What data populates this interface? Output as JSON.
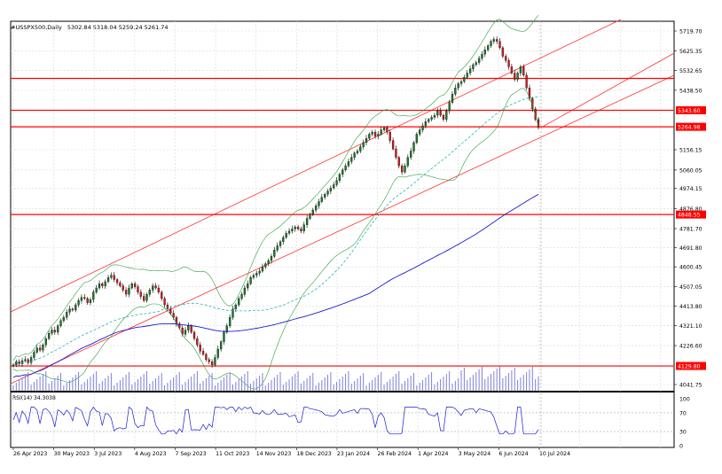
{
  "header": {
    "symbol": "#USSPX500,Daily",
    "ohlc": "5302.84 5318.04 5259.24 5261.74"
  },
  "rsi": {
    "label": "RSI(14) 34.3038",
    "levels": [
      "100",
      "70",
      "30",
      "0"
    ]
  },
  "chart_data": {
    "type": "candlestick",
    "price_axis_ticks": [
      "5719.70",
      "5625.35",
      "5532.65",
      "5438.50",
      "5343.60",
      "5264.98",
      "5156.15",
      "5060.05",
      "4974.15",
      "4876.80",
      "4848.55",
      "4781.70",
      "4691.80",
      "4600.45",
      "4507.05",
      "4413.80",
      "4321.10",
      "4226.60",
      "4129.80",
      "4041.75"
    ],
    "price_tick_values": [
      5719.7,
      5625.35,
      5532.65,
      5438.5,
      5343.6,
      5264.98,
      5156.15,
      5060.05,
      4974.15,
      4876.8,
      4848.55,
      4781.7,
      4691.8,
      4600.45,
      4507.05,
      4413.8,
      4321.1,
      4226.6,
      4129.8,
      4041.75
    ],
    "horizontal_levels": [
      {
        "value": 5494.6,
        "label": "5494.60",
        "color": "#ff0000"
      },
      {
        "value": 5343.6,
        "label": "5343.60",
        "color": "#ff0000"
      },
      {
        "value": 5264.98,
        "label": "5264.98",
        "color": "#ff0000"
      },
      {
        "value": 4848.55,
        "label": "4848.55",
        "color": "#ff0000"
      },
      {
        "value": 4129.8,
        "label": "4129.80",
        "color": "#ff0000"
      }
    ],
    "highlighted_ticks": [
      "5494.60",
      "5343.60",
      "5264.98",
      "4848.55",
      "4129.80"
    ],
    "time_axis_labels": [
      "26 Apr 2023",
      "30 May 2023",
      "3 Jul 2023",
      "4 Aug 2023",
      "7 Sep 2023",
      "11 Oct 2023",
      "14 Nov 2023",
      "18 Dec 2023",
      "23 Jan 2024",
      "26 Feb 2024",
      "1 Apr 2024",
      "3 May 2024",
      "6 Jun 2024",
      "10 Jul 2024"
    ],
    "closes": [
      4135,
      4150,
      4140,
      4155,
      4160,
      4145,
      4170,
      4195,
      4215,
      4205,
      4230,
      4260,
      4285,
      4300,
      4290,
      4320,
      4345,
      4360,
      4385,
      4400,
      4395,
      4420,
      4440,
      4455,
      4450,
      4430,
      4445,
      4480,
      4500,
      4520,
      4510,
      4530,
      4550,
      4560,
      4540,
      4525,
      4510,
      4490,
      4470,
      4500,
      4520,
      4505,
      4480,
      4460,
      4440,
      4470,
      4490,
      4510,
      4500,
      4480,
      4450,
      4420,
      4400,
      4380,
      4360,
      4330,
      4310,
      4280,
      4300,
      4320,
      4290,
      4260,
      4230,
      4200,
      4185,
      4160,
      4150,
      4135,
      4170,
      4210,
      4245,
      4290,
      4320,
      4360,
      4400,
      4420,
      4450,
      4470,
      4500,
      4520,
      4550,
      4560,
      4570,
      4580,
      4600,
      4615,
      4630,
      4650,
      4680,
      4700,
      4720,
      4740,
      4760,
      4770,
      4780,
      4790,
      4780,
      4770,
      4800,
      4830,
      4850,
      4870,
      4890,
      4910,
      4930,
      4945,
      4960,
      4975,
      4990,
      5010,
      5040,
      5060,
      5080,
      5100,
      5120,
      5140,
      5150,
      5170,
      5190,
      5210,
      5230,
      5240,
      5220,
      5230,
      5250,
      5260,
      5240,
      5200,
      5160,
      5120,
      5080,
      5050,
      5080,
      5120,
      5150,
      5190,
      5230,
      5250,
      5270,
      5290,
      5300,
      5310,
      5320,
      5340,
      5320,
      5300,
      5340,
      5380,
      5420,
      5450,
      5470,
      5480,
      5500,
      5520,
      5540,
      5560,
      5570,
      5590,
      5610,
      5630,
      5650,
      5670,
      5680,
      5670,
      5640,
      5600,
      5580,
      5550,
      5520,
      5490,
      5520,
      5550,
      5510,
      5450,
      5400,
      5350,
      5300,
      5261.74
    ],
    "ma_slow_label": "",
    "bands": true,
    "volume_histogram": true,
    "grid": true
  }
}
